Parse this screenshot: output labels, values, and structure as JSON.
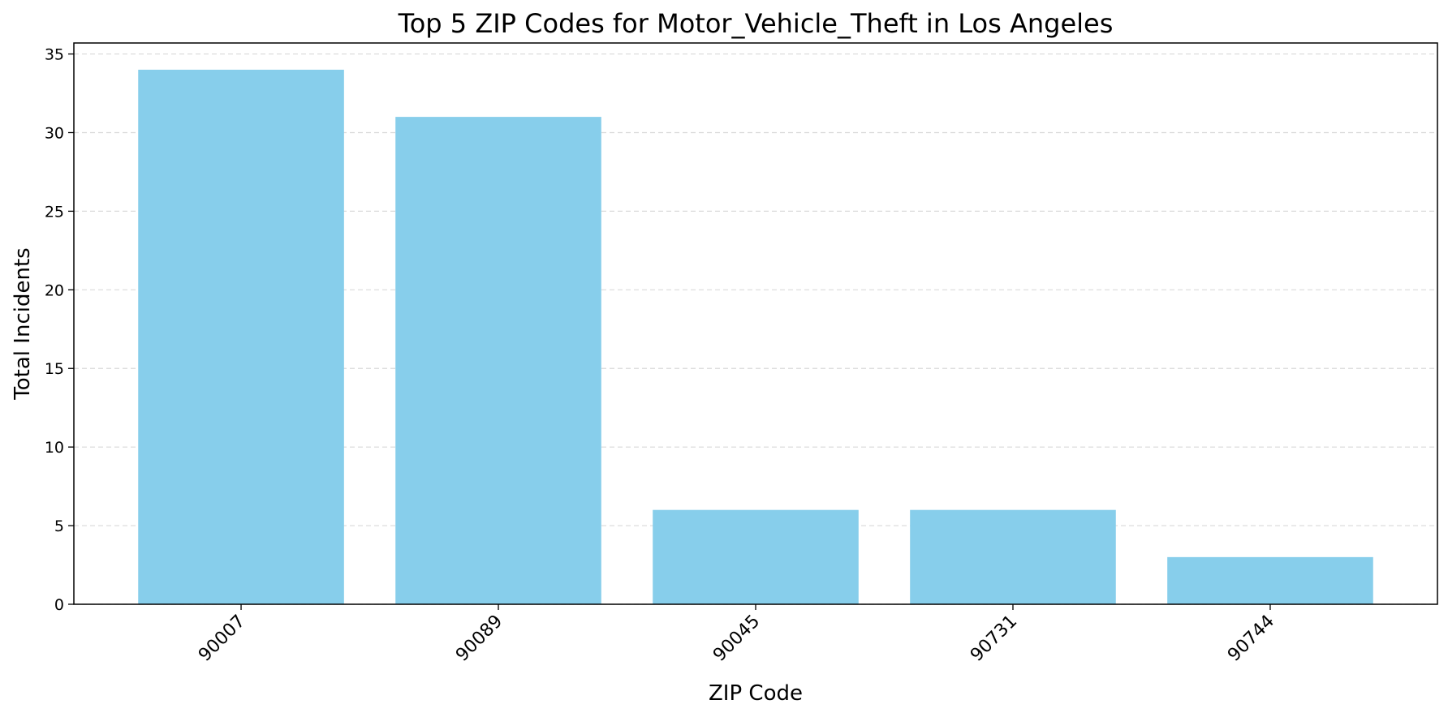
{
  "chart_data": {
    "type": "bar",
    "title": "Top 5 ZIP Codes for Motor_Vehicle_Theft in Los Angeles",
    "xlabel": "ZIP Code",
    "ylabel": "Total Incidents",
    "categories": [
      "90007",
      "90089",
      "90045",
      "90731",
      "90744"
    ],
    "values": [
      34,
      31,
      6,
      6,
      3
    ],
    "ylim": [
      0,
      35.7
    ],
    "yticks": [
      0,
      5,
      10,
      15,
      20,
      25,
      30,
      35
    ],
    "grid": "y-dashed",
    "bar_color": "#87CEEB"
  }
}
